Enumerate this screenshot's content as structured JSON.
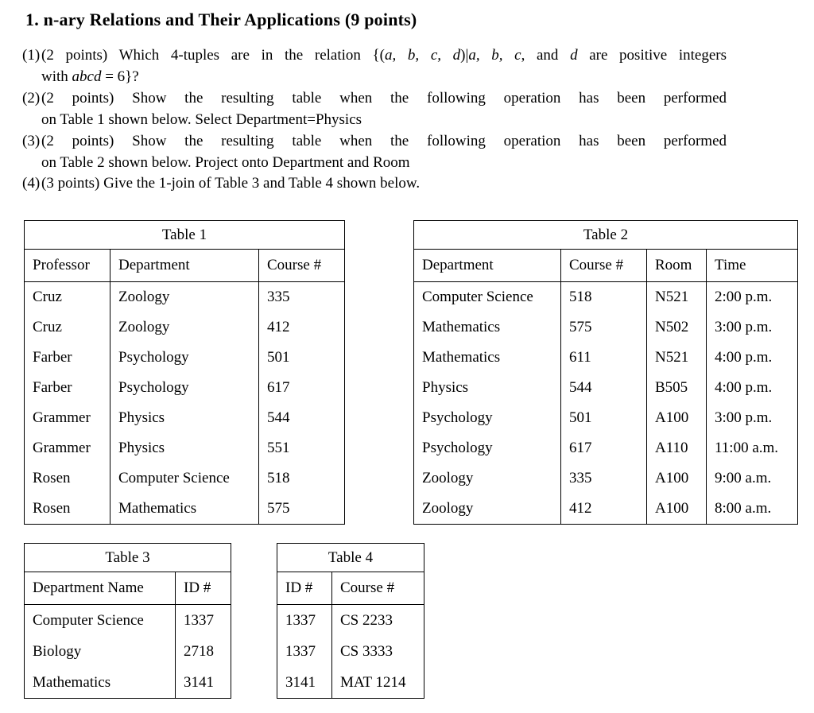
{
  "title": "1. n-ary Relations and Their Applications (9 points)",
  "items": [
    {
      "marker": "(1)",
      "lines": [
        {
          "segments": [
            {
              "t": "(2 points) Which 4-tuples are in the relation {("
            },
            {
              "t": "a, b, c, d",
              "i": true
            },
            {
              "t": ")|"
            },
            {
              "t": "a, b, c",
              "i": true
            },
            {
              "t": ", and "
            },
            {
              "t": "d",
              "i": true
            },
            {
              "t": " are positive integers"
            }
          ]
        },
        {
          "segments": [
            {
              "t": "with "
            },
            {
              "t": "abcd",
              "i": true
            },
            {
              "t": " = 6}?"
            }
          ]
        }
      ]
    },
    {
      "marker": "(2)",
      "lines": [
        {
          "segments": [
            {
              "t": "(2 points) Show the resulting table when the following operation has been performed"
            }
          ]
        },
        {
          "segments": [
            {
              "t": "on Table 1 shown below. Select Department=Physics"
            }
          ]
        }
      ]
    },
    {
      "marker": "(3)",
      "lines": [
        {
          "segments": [
            {
              "t": "(2 points) Show the resulting table when the following operation has been performed"
            }
          ]
        },
        {
          "segments": [
            {
              "t": "on Table 2 shown below. Project onto Department and Room"
            }
          ]
        }
      ]
    },
    {
      "marker": "(4)",
      "lines": [
        {
          "segments": [
            {
              "t": "(3 points) Give the 1-join of Table 3 and Table 4 shown below."
            }
          ]
        }
      ]
    }
  ],
  "tables": [
    {
      "title": "Table 1",
      "headers": [
        "Professor",
        "Department",
        "Course #"
      ],
      "rows": [
        [
          "Cruz",
          "Zoology",
          "335"
        ],
        [
          "Cruz",
          "Zoology",
          "412"
        ],
        [
          "Farber",
          "Psychology",
          "501"
        ],
        [
          "Farber",
          "Psychology",
          "617"
        ],
        [
          "Grammer",
          "Physics",
          "544"
        ],
        [
          "Grammer",
          "Physics",
          "551"
        ],
        [
          "Rosen",
          "Computer Science",
          "518"
        ],
        [
          "Rosen",
          "Mathematics",
          "575"
        ]
      ]
    },
    {
      "title": "Table 2",
      "headers": [
        "Department",
        "Course #",
        "Room",
        "Time"
      ],
      "rows": [
        [
          "Computer Science",
          "518",
          "N521",
          "2:00 p.m."
        ],
        [
          "Mathematics",
          "575",
          "N502",
          "3:00 p.m."
        ],
        [
          "Mathematics",
          "611",
          "N521",
          "4:00 p.m."
        ],
        [
          "Physics",
          "544",
          "B505",
          "4:00 p.m."
        ],
        [
          "Psychology",
          "501",
          "A100",
          "3:00 p.m."
        ],
        [
          "Psychology",
          "617",
          "A110",
          "11:00 a.m."
        ],
        [
          "Zoology",
          "335",
          "A100",
          "9:00 a.m."
        ],
        [
          "Zoology",
          "412",
          "A100",
          "8:00 a.m."
        ]
      ]
    },
    {
      "title": "Table 3",
      "headers": [
        "Department Name",
        "ID #"
      ],
      "rows": [
        [
          "Computer Science",
          "1337"
        ],
        [
          "Biology",
          "2718"
        ],
        [
          "Mathematics",
          "3141"
        ]
      ]
    },
    {
      "title": "Table 4",
      "headers": [
        "ID #",
        "Course #"
      ],
      "rows": [
        [
          "1337",
          "CS 2233"
        ],
        [
          "1337",
          "CS 3333"
        ],
        [
          "3141",
          "MAT 1214"
        ]
      ]
    }
  ]
}
